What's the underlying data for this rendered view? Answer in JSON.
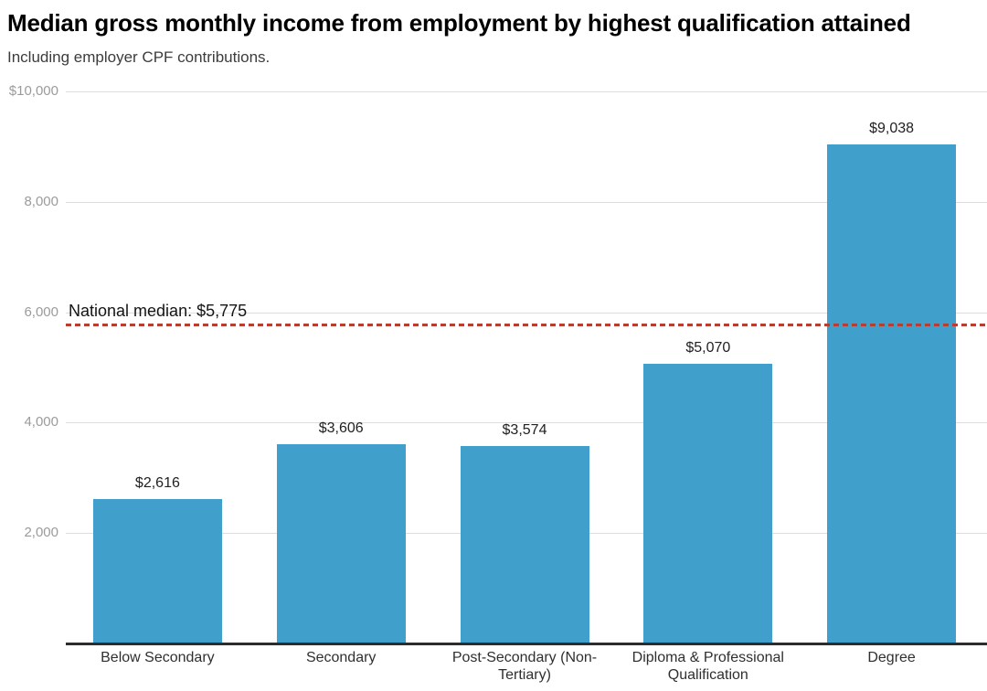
{
  "header": {
    "title": "Median gross monthly income from employment by highest qualification attained",
    "subtitle": "Including employer CPF contributions."
  },
  "chart_data": {
    "type": "bar",
    "title": "Median gross monthly income from employment by highest qualification attained",
    "subtitle": "Including employer CPF contributions.",
    "categories": [
      "Below Secondary",
      "Secondary",
      "Post-Secondary (Non-Tertiary)",
      "Diploma & Professional Qualification",
      "Degree"
    ],
    "values": [
      2616,
      3606,
      3574,
      5070,
      9038
    ],
    "value_labels": [
      "$2,616",
      "$3,606",
      "$3,574",
      "$5,070",
      "$9,038"
    ],
    "xlabel": "",
    "ylabel": "",
    "ylim": [
      0,
      10000
    ],
    "yticks": [
      2000,
      4000,
      6000,
      8000,
      10000
    ],
    "ytick_labels": [
      "2,000",
      "4,000",
      "6,000",
      "8,000",
      "$10,000"
    ],
    "grid": true,
    "legend": "none",
    "bar_color": "#419fcb",
    "reference_line": {
      "value": 5775,
      "label": "National median: $5,775",
      "color": "#b73e30",
      "style": "dashed"
    }
  }
}
